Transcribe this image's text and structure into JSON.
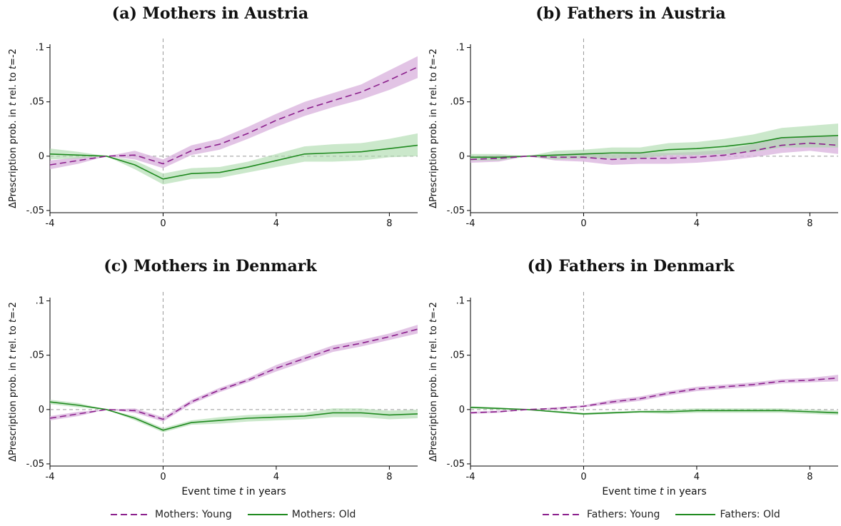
{
  "chart_data": [
    {
      "type": "line",
      "title": "(a) Mothers in Austria",
      "ylabel_parts": [
        "ΔPrescription prob. in ",
        "t",
        " rel. to ",
        "t",
        "=-2"
      ],
      "xlabel_parts": [],
      "xlim": [
        -4,
        9
      ],
      "ylim": [
        -0.052,
        0.103
      ],
      "xticks": [
        -4,
        0,
        4,
        8
      ],
      "xtick_labels": [
        "-4",
        "0",
        "4",
        "8"
      ],
      "yticks": [
        -0.05,
        0,
        0.05,
        0.1
      ],
      "ytick_labels": [
        "-.05",
        "0",
        ".05",
        ".1"
      ],
      "x": [
        -4,
        -3,
        -2,
        -1,
        0,
        1,
        2,
        3,
        4,
        5,
        6,
        7,
        8,
        9
      ],
      "series": [
        {
          "values": [
            -0.008,
            -0.004,
            0,
            0.001,
            -0.007,
            0.005,
            0.011,
            0.021,
            0.033,
            0.043,
            0.051,
            0.059,
            0.07,
            0.082
          ],
          "lower": [
            -0.012,
            -0.007,
            0,
            -0.003,
            -0.011,
            0.001,
            0.006,
            0.016,
            0.027,
            0.037,
            0.045,
            0.052,
            0.061,
            0.072
          ],
          "upper": [
            -0.004,
            -0.001,
            0,
            0.005,
            -0.003,
            0.01,
            0.016,
            0.027,
            0.039,
            0.05,
            0.058,
            0.066,
            0.079,
            0.092
          ]
        },
        {
          "values": [
            0.002,
            0.001,
            0,
            -0.008,
            -0.021,
            -0.016,
            -0.015,
            -0.01,
            -0.004,
            0.002,
            0.003,
            0.004,
            0.007,
            0.01
          ],
          "lower": [
            -0.003,
            -0.002,
            0,
            -0.012,
            -0.026,
            -0.021,
            -0.02,
            -0.015,
            -0.01,
            -0.005,
            -0.005,
            -0.004,
            -0.001,
            0.0
          ],
          "upper": [
            0.007,
            0.004,
            0,
            -0.004,
            -0.016,
            -0.011,
            -0.01,
            -0.005,
            0.002,
            0.009,
            0.011,
            0.012,
            0.016,
            0.021
          ]
        }
      ]
    },
    {
      "type": "line",
      "title": "(b) Fathers in Austria",
      "ylabel_parts": [
        "ΔPrescription prob. in ",
        "t",
        " rel. to ",
        "t",
        "=-2"
      ],
      "xlabel_parts": [],
      "xlim": [
        -4,
        9
      ],
      "ylim": [
        -0.052,
        0.103
      ],
      "xticks": [
        -4,
        0,
        4,
        8
      ],
      "xtick_labels": [
        "-4",
        "0",
        "4",
        "8"
      ],
      "yticks": [
        -0.05,
        0,
        0.05,
        0.1
      ],
      "ytick_labels": [
        "-.05",
        "0",
        ".05",
        ".1"
      ],
      "x": [
        -4,
        -3,
        -2,
        -1,
        0,
        1,
        2,
        3,
        4,
        5,
        6,
        7,
        8,
        9
      ],
      "series": [
        {
          "values": [
            -0.003,
            -0.002,
            0,
            -0.001,
            -0.001,
            -0.003,
            -0.002,
            -0.002,
            -0.001,
            0.001,
            0.005,
            0.01,
            0.012,
            0.01
          ],
          "lower": [
            -0.006,
            -0.005,
            0,
            -0.004,
            -0.005,
            -0.008,
            -0.007,
            -0.007,
            -0.006,
            -0.004,
            -0.001,
            0.003,
            0.005,
            0.002
          ],
          "upper": [
            0.0,
            0.001,
            0,
            0.002,
            0.003,
            0.002,
            0.003,
            0.003,
            0.004,
            0.006,
            0.011,
            0.017,
            0.019,
            0.018
          ]
        },
        {
          "values": [
            -0.001,
            -0.001,
            0,
            0.001,
            0.002,
            0.003,
            0.003,
            0.006,
            0.007,
            0.009,
            0.012,
            0.017,
            0.018,
            0.019
          ],
          "lower": [
            -0.004,
            -0.004,
            0,
            -0.003,
            -0.002,
            -0.002,
            -0.002,
            0.001,
            0.001,
            0.002,
            0.004,
            0.008,
            0.008,
            0.008
          ],
          "upper": [
            0.002,
            0.002,
            0,
            0.005,
            0.006,
            0.008,
            0.008,
            0.012,
            0.013,
            0.016,
            0.02,
            0.026,
            0.028,
            0.03
          ]
        }
      ]
    },
    {
      "type": "line",
      "title": "(c) Mothers in Denmark",
      "ylabel_parts": [
        "ΔPrescription prob. in ",
        "t",
        " rel. to ",
        "t",
        "=-2"
      ],
      "xlabel_parts": [
        "Event time ",
        "t",
        " in years"
      ],
      "xlim": [
        -4,
        9
      ],
      "ylim": [
        -0.052,
        0.103
      ],
      "xticks": [
        -4,
        0,
        4,
        8
      ],
      "xtick_labels": [
        "-4",
        "0",
        "4",
        "8"
      ],
      "yticks": [
        -0.05,
        0,
        0.05,
        0.1
      ],
      "ytick_labels": [
        "-.05",
        "0",
        ".05",
        ".1"
      ],
      "x": [
        -4,
        -3,
        -2,
        -1,
        0,
        1,
        2,
        3,
        4,
        5,
        6,
        7,
        8,
        9
      ],
      "series": [
        {
          "values": [
            -0.008,
            -0.004,
            0,
            -0.001,
            -0.009,
            0.007,
            0.018,
            0.027,
            0.038,
            0.047,
            0.056,
            0.061,
            0.067,
            0.074
          ],
          "lower": [
            -0.01,
            -0.006,
            0,
            -0.003,
            -0.011,
            0.005,
            0.016,
            0.025,
            0.035,
            0.044,
            0.053,
            0.058,
            0.064,
            0.07
          ],
          "upper": [
            -0.006,
            -0.002,
            0,
            0.001,
            -0.007,
            0.009,
            0.02,
            0.029,
            0.041,
            0.05,
            0.059,
            0.064,
            0.07,
            0.078
          ]
        },
        {
          "values": [
            0.007,
            0.004,
            0,
            -0.008,
            -0.019,
            -0.012,
            -0.01,
            -0.008,
            -0.007,
            -0.006,
            -0.003,
            -0.003,
            -0.005,
            -0.004
          ],
          "lower": [
            0.005,
            0.002,
            0,
            -0.01,
            -0.021,
            -0.014,
            -0.013,
            -0.011,
            -0.01,
            -0.009,
            -0.007,
            -0.007,
            -0.009,
            -0.008
          ],
          "upper": [
            0.009,
            0.006,
            0,
            -0.006,
            -0.017,
            -0.01,
            -0.007,
            -0.005,
            -0.004,
            -0.003,
            0.001,
            0.001,
            -0.001,
            0.0
          ]
        }
      ],
      "legend": [
        "Mothers: Young",
        "Mothers: Old"
      ]
    },
    {
      "type": "line",
      "title": "(d) Fathers in Denmark",
      "ylabel_parts": [
        "ΔPrescription prob. in ",
        "t",
        " rel. to ",
        "t",
        "=-2"
      ],
      "xlabel_parts": [
        "Event time ",
        "t",
        " in years"
      ],
      "xlim": [
        -4,
        9
      ],
      "ylim": [
        -0.052,
        0.103
      ],
      "xticks": [
        -4,
        0,
        4,
        8
      ],
      "xtick_labels": [
        "-4",
        "0",
        "4",
        "8"
      ],
      "yticks": [
        -0.05,
        0,
        0.05,
        0.1
      ],
      "ytick_labels": [
        "-.05",
        "0",
        ".05",
        ".1"
      ],
      "x": [
        -4,
        -3,
        -2,
        -1,
        0,
        1,
        2,
        3,
        4,
        5,
        6,
        7,
        8,
        9
      ],
      "series": [
        {
          "values": [
            -0.003,
            -0.002,
            0,
            0.001,
            0.003,
            0.007,
            0.01,
            0.015,
            0.019,
            0.021,
            0.023,
            0.026,
            0.027,
            0.029
          ],
          "lower": [
            -0.004,
            -0.003,
            0,
            0.0,
            0.002,
            0.005,
            0.008,
            0.013,
            0.017,
            0.019,
            0.021,
            0.024,
            0.025,
            0.026
          ],
          "upper": [
            -0.002,
            -0.001,
            0,
            0.002,
            0.004,
            0.009,
            0.012,
            0.017,
            0.021,
            0.023,
            0.025,
            0.028,
            0.029,
            0.032
          ]
        },
        {
          "values": [
            0.002,
            0.001,
            0,
            -0.002,
            -0.004,
            -0.003,
            -0.002,
            -0.002,
            -0.001,
            -0.001,
            -0.001,
            -0.001,
            -0.002,
            -0.003
          ],
          "lower": [
            0.001,
            0.0,
            0,
            -0.003,
            -0.005,
            -0.004,
            -0.003,
            -0.004,
            -0.003,
            -0.003,
            -0.003,
            -0.003,
            -0.004,
            -0.005
          ],
          "upper": [
            0.003,
            0.002,
            0,
            -0.001,
            -0.003,
            -0.002,
            -0.001,
            0.0,
            0.001,
            0.001,
            0.001,
            0.001,
            0.0,
            -0.001
          ]
        }
      ],
      "legend": [
        "Fathers: Young",
        "Fathers: Old"
      ]
    }
  ],
  "legends": [
    {
      "young": "Mothers: Young",
      "old": "Mothers: Old"
    },
    {
      "young": "Fathers: Young",
      "old": "Fathers: Old"
    }
  ],
  "colors": {
    "young": "#8b1f8c",
    "young_band": "#d8b0dc",
    "old": "#1f8a1f",
    "old_band": "#a8d8a8",
    "overlap": "#7a7a7a",
    "ref": "#999999"
  }
}
